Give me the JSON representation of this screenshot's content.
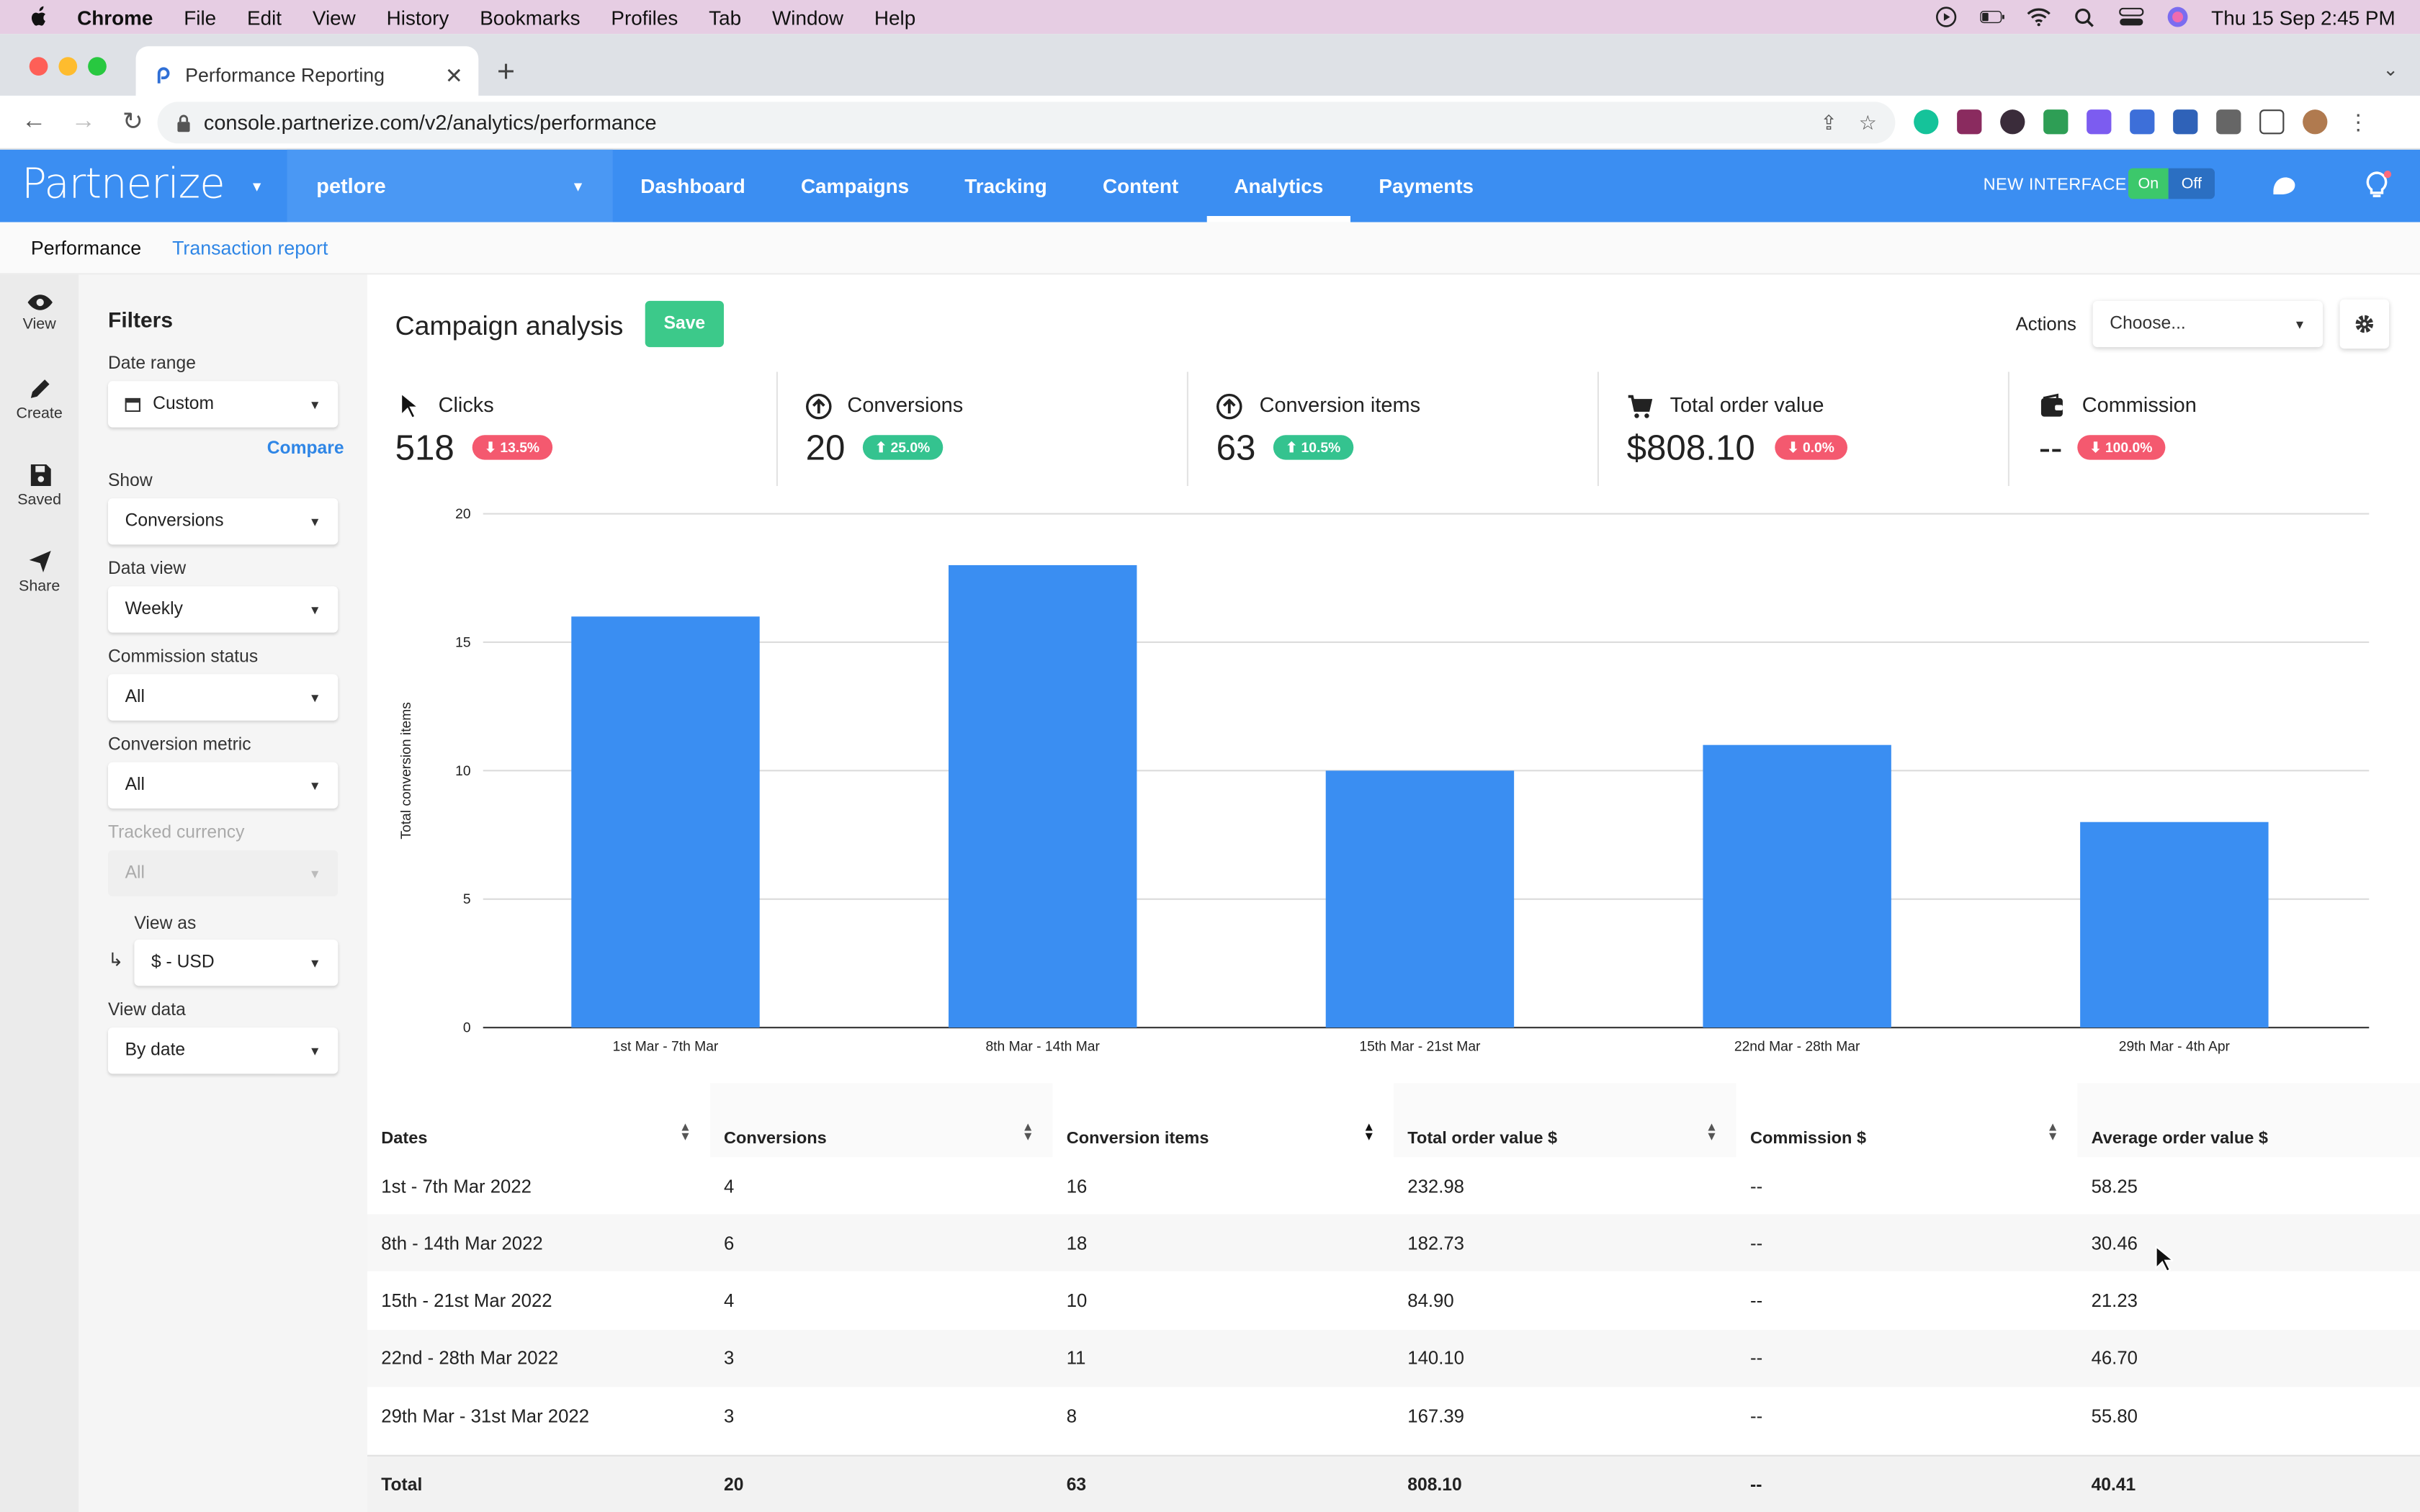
{
  "mac_menu": {
    "app": "Chrome",
    "items": [
      "File",
      "Edit",
      "View",
      "History",
      "Bookmarks",
      "Profiles",
      "Tab",
      "Window",
      "Help"
    ],
    "clock": "Thu 15 Sep  2:45 PM"
  },
  "browser": {
    "tab_title": "Performance Reporting",
    "url": "console.partnerize.com/v2/analytics/performance"
  },
  "app_header": {
    "logo": "Partnerize",
    "brand": "petlore",
    "nav": [
      "Dashboard",
      "Campaigns",
      "Tracking",
      "Content",
      "Analytics",
      "Payments"
    ],
    "active_nav": "Analytics",
    "new_interface_label": "NEW INTERFACE",
    "toggle_on": "On",
    "toggle_off": "Off"
  },
  "subnav": {
    "performance": "Performance",
    "transaction_report": "Transaction report"
  },
  "rail": {
    "view": "View",
    "create": "Create",
    "saved": "Saved",
    "share": "Share"
  },
  "filters": {
    "title": "Filters",
    "date_range_label": "Date range",
    "date_range_value": "Custom",
    "compare": "Compare",
    "show_label": "Show",
    "show_value": "Conversions",
    "data_view_label": "Data view",
    "data_view_value": "Weekly",
    "commission_status_label": "Commission status",
    "commission_status_value": "All",
    "conversion_metric_label": "Conversion metric",
    "conversion_metric_value": "All",
    "tracked_currency_label": "Tracked currency",
    "tracked_currency_value": "All",
    "view_as_label": "View as",
    "view_as_value": "$ - USD",
    "view_data_label": "View data",
    "view_data_value": "By date"
  },
  "main": {
    "title": "Campaign analysis",
    "save": "Save",
    "actions_label": "Actions",
    "actions_placeholder": "Choose..."
  },
  "metrics": [
    {
      "label": "Clicks",
      "value": "518",
      "change": "13.5%",
      "direction": "down"
    },
    {
      "label": "Conversions",
      "value": "20",
      "change": "25.0%",
      "direction": "up"
    },
    {
      "label": "Conversion items",
      "value": "63",
      "change": "10.5%",
      "direction": "up"
    },
    {
      "label": "Total order value",
      "value": "$808.10",
      "change": "0.0%",
      "direction": "down"
    },
    {
      "label": "Commission",
      "value": "--",
      "change": "100.0%",
      "direction": "down"
    }
  ],
  "chart_data": {
    "type": "bar",
    "categories": [
      "1st Mar - 7th Mar",
      "8th Mar - 14th Mar",
      "15th Mar - 21st Mar",
      "22nd Mar - 28th Mar",
      "29th Mar - 4th Apr"
    ],
    "values": [
      16,
      18,
      10,
      11,
      8
    ],
    "ylabel": "Total conversion items",
    "ylim": [
      0,
      20
    ],
    "yticks": [
      0,
      5,
      10,
      15,
      20
    ],
    "grid": true,
    "color": "#3a8ef2"
  },
  "table": {
    "columns": [
      "Dates",
      "Conversions",
      "Conversion items",
      "Total order value $",
      "Commission $",
      "Average order value $"
    ],
    "rows": [
      [
        "1st - 7th Mar 2022",
        "4",
        "16",
        "232.98",
        "--",
        "58.25"
      ],
      [
        "8th - 14th Mar 2022",
        "6",
        "18",
        "182.73",
        "--",
        "30.46"
      ],
      [
        "15th - 21st Mar 2022",
        "4",
        "10",
        "84.90",
        "--",
        "21.23"
      ],
      [
        "22nd - 28th Mar 2022",
        "3",
        "11",
        "140.10",
        "--",
        "46.70"
      ],
      [
        "29th Mar - 31st Mar 2022",
        "3",
        "8",
        "167.39",
        "--",
        "55.80"
      ]
    ],
    "total": [
      "Total",
      "20",
      "63",
      "808.10",
      "--",
      "40.41"
    ]
  }
}
